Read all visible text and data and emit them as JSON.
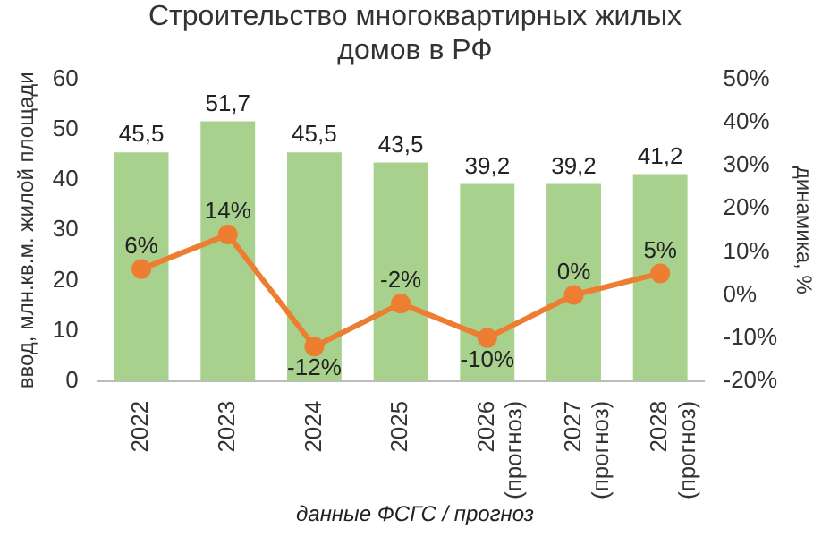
{
  "chart_data": {
    "type": "bar",
    "title": "Строительство многоквартирных жилых домов в РФ",
    "categories": [
      "2022",
      "2023",
      "2024",
      "2025",
      "2026 (прогноз)",
      "2027 (прогноз)",
      "2028 (прогноз)"
    ],
    "series": [
      {
        "color": "#a9d18e",
        "values": [
          45.5,
          51.7,
          45.5,
          43.5,
          39.2,
          39.2,
          41.2
        ],
        "value_labels": [
          "45,5",
          "51,7",
          "45,5",
          "43,5",
          "39,2",
          "39,2",
          "41,2"
        ]
      },
      {
        "type": "line",
        "axis": "y2",
        "color": "#ed7d31",
        "marker": "circle",
        "values": [
          6,
          14,
          -12,
          -2,
          -10,
          0,
          5
        ],
        "value_labels": [
          "6%",
          "14%",
          "-12%",
          "-2%",
          "-10%",
          "0%",
          "5%"
        ]
      }
    ],
    "ylabel": "ввод, млн.кв.м. жилой площади",
    "y2label": "динамика, %",
    "ylim": [
      0,
      60
    ],
    "yticks": [
      0,
      10,
      20,
      30,
      40,
      50,
      60
    ],
    "y2lim": [
      -20,
      50
    ],
    "y2ticks": [
      {
        "value": -20,
        "label": "-20%"
      },
      {
        "value": -10,
        "label": "-10%"
      },
      {
        "value": 0,
        "label": "0%"
      },
      {
        "value": 10,
        "label": "10%"
      },
      {
        "value": 20,
        "label": "20%"
      },
      {
        "value": 30,
        "label": "30%"
      },
      {
        "value": 40,
        "label": "40%"
      },
      {
        "value": 50,
        "label": "50%"
      }
    ],
    "grid": false,
    "legend": false,
    "annotations": [
      "данные ФСГС / прогноз"
    ]
  }
}
